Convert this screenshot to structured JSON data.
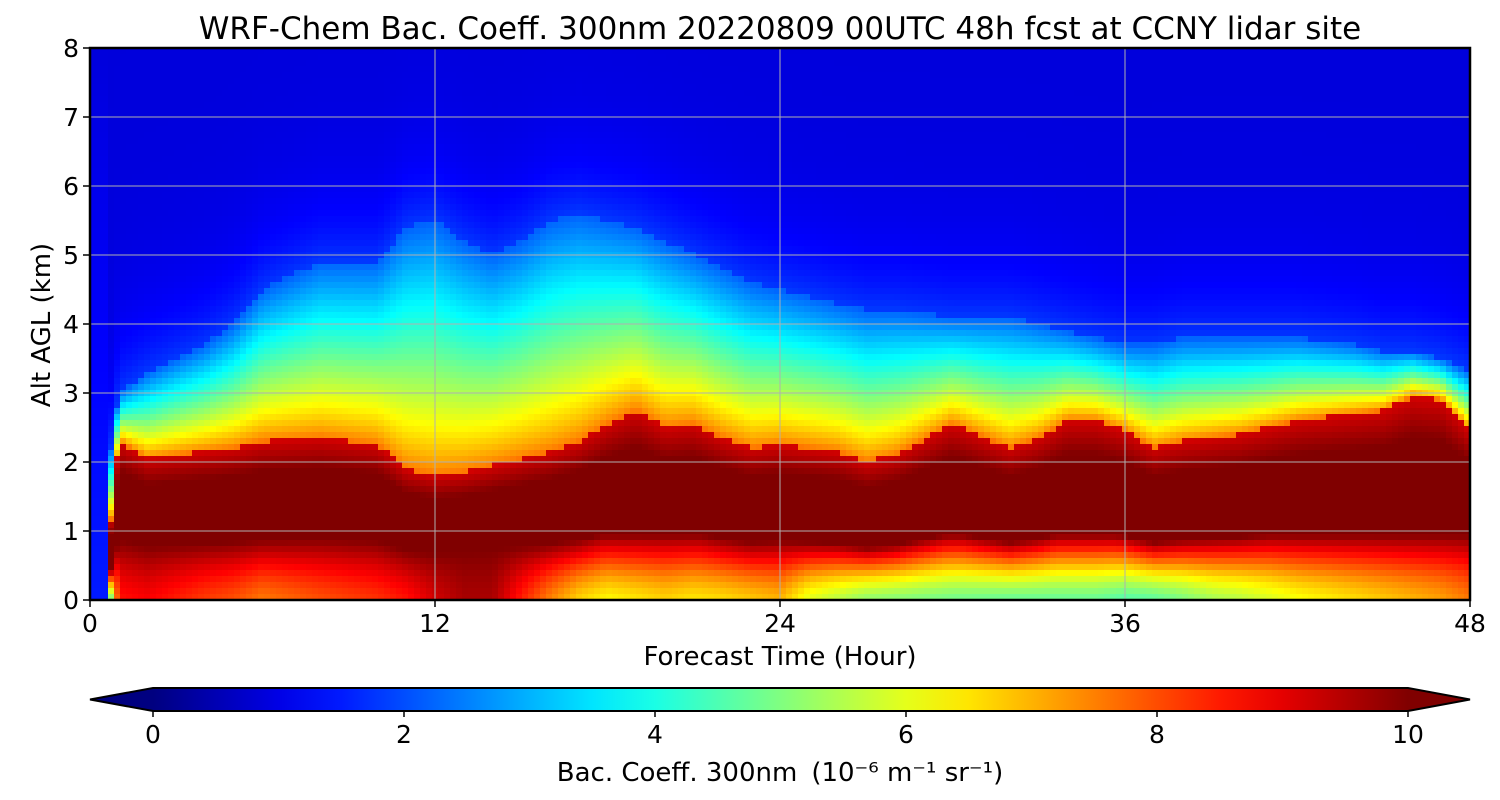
{
  "chart_data": {
    "type": "heatmap",
    "title": "WRF-Chem Bac. Coeff. 300nm  20220809 00UTC 48h fcst at CCNY lidar site",
    "xlabel": "Forecast Time (Hour)",
    "ylabel": "Alt AGL (km)",
    "xlim": [
      0,
      48
    ],
    "ylim": [
      0,
      8
    ],
    "x_ticks": [
      "0",
      "12",
      "24",
      "36",
      "48"
    ],
    "y_ticks": [
      "0",
      "1",
      "2",
      "3",
      "4",
      "5",
      "6",
      "7",
      "8"
    ],
    "grid": true,
    "colorscale": "jet",
    "colorbar": {
      "label": "Bac. Coeff. 300nm",
      "unit_text": "(10⁻⁶ m⁻¹ sr⁻¹)",
      "range": [
        0,
        10
      ],
      "ticks": [
        "0",
        "2",
        "4",
        "6",
        "8",
        "10"
      ],
      "extend": "both",
      "orientation": "horizontal"
    },
    "x": [
      0,
      0.5,
      1,
      2,
      3,
      4,
      5,
      6,
      8,
      10,
      11,
      12,
      13,
      14,
      15,
      16,
      17,
      18,
      19,
      20,
      21,
      22,
      23,
      24,
      25,
      26,
      27,
      28,
      30,
      32,
      33,
      34,
      35,
      36,
      37,
      38,
      39,
      40,
      42,
      44,
      45,
      46,
      47,
      48
    ],
    "y": [
      0,
      0.1,
      0.25,
      0.5,
      0.75,
      1,
      1.25,
      1.5,
      1.75,
      2,
      2.25,
      2.5,
      2.75,
      3,
      3.5,
      4,
      4.5,
      5,
      5.5,
      6,
      7,
      8
    ],
    "top_of_dense_layer_km": [
      0,
      0.2,
      2.3,
      2.05,
      2.1,
      2.15,
      2.2,
      2.3,
      2.35,
      2.25,
      1.9,
      1.8,
      1.85,
      1.95,
      2.05,
      2.15,
      2.3,
      2.55,
      2.75,
      2.5,
      2.55,
      2.35,
      2.2,
      2.25,
      2.2,
      2.15,
      2.0,
      2.1,
      2.55,
      2.2,
      2.35,
      2.6,
      2.6,
      2.45,
      2.2,
      2.3,
      2.35,
      2.4,
      2.6,
      2.7,
      2.75,
      2.95,
      2.9,
      2.45
    ],
    "aerosol_top_km": [
      0,
      1.5,
      3.0,
      3.3,
      3.5,
      3.7,
      4.0,
      4.5,
      4.9,
      4.9,
      5.4,
      5.5,
      5.2,
      5.0,
      5.2,
      5.5,
      5.6,
      5.5,
      5.4,
      5.2,
      5.0,
      4.8,
      4.6,
      4.5,
      4.4,
      4.3,
      4.2,
      4.2,
      4.1,
      4.1,
      4.0,
      3.9,
      3.8,
      3.7,
      3.7,
      3.8,
      3.8,
      3.8,
      3.8,
      3.7,
      3.6,
      3.6,
      3.5,
      3.3
    ],
    "surface_layer_min_value": [
      0,
      2,
      8.6,
      8.8,
      8.5,
      8.2,
      8.0,
      7.6,
      8.0,
      8.3,
      8.6,
      9.2,
      9.6,
      9.6,
      8.5,
      7.5,
      6.7,
      6.3,
      6.5,
      6.7,
      6.5,
      6.6,
      6.8,
      7.0,
      6.0,
      5.6,
      5.2,
      5.1,
      4.9,
      4.8,
      4.8,
      4.8,
      4.8,
      4.6,
      4.7,
      5.0,
      5.4,
      5.6,
      6.2,
      6.6,
      6.8,
      7.0,
      7.2,
      7.6
    ],
    "upper_free_troposphere_value": 0.9,
    "mixed_layer_peak_value": 10
  }
}
